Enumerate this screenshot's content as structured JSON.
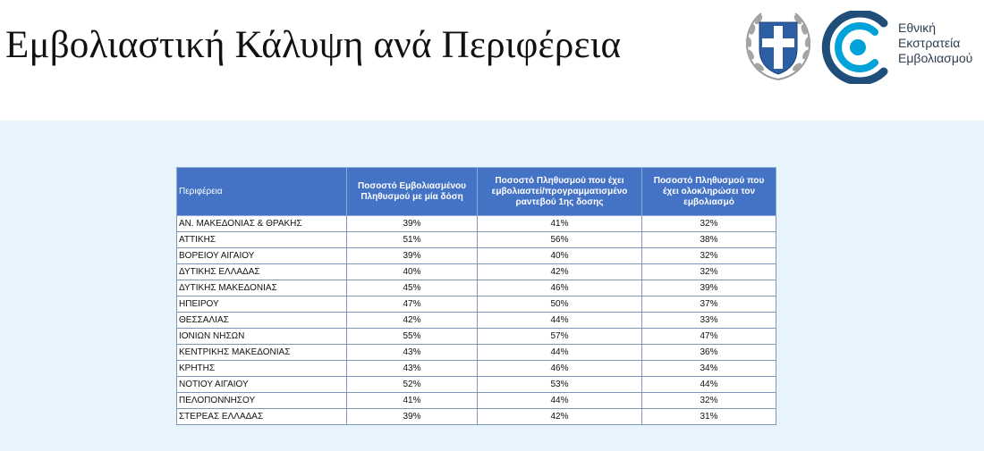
{
  "header": {
    "title": "Εμβολιαστική Κάλυψη ανά Περιφέρεια",
    "logo_text": [
      "Εθνική",
      "Εκστρατεία",
      "Εμβολιασμού"
    ],
    "colors": {
      "logo_dark": "#1f4e79",
      "logo_light": "#00a3d9",
      "seal_blue": "#2d5fa5"
    }
  },
  "table": {
    "headers": [
      "Περιφέρεια",
      "Ποσοστό Εμβολιασμένου Πληθυσμού με μία δόση",
      "Ποσοστό Πληθυσμού που έχει εμβολιαστεί/προγραμματισμένο ραντεβού 1ης δοσης",
      "Ποσοστό Πληθυσμού που έχει ολοκληρώσει τον εμβολιασμό"
    ],
    "rows": [
      [
        "ΑΝ. ΜΑΚΕΔΟΝΙΑΣ & ΘΡΑΚΗΣ",
        "39%",
        "41%",
        "32%"
      ],
      [
        "ΑΤΤΙΚΗΣ",
        "51%",
        "56%",
        "38%"
      ],
      [
        "ΒΟΡΕΙΟΥ ΑΙΓΑΙΟΥ",
        "39%",
        "40%",
        "32%"
      ],
      [
        "ΔΥΤΙΚΗΣ ΕΛΛΑΔΑΣ",
        "40%",
        "42%",
        "32%"
      ],
      [
        "ΔΥΤΙΚΗΣ ΜΑΚΕΔΟΝΙΑΣ",
        "45%",
        "46%",
        "39%"
      ],
      [
        "ΗΠΕΙΡΟΥ",
        "47%",
        "50%",
        "37%"
      ],
      [
        "ΘΕΣΣΑΛΙΑΣ",
        "42%",
        "44%",
        "33%"
      ],
      [
        "ΙΟΝΙΩΝ ΝΗΣΩΝ",
        "55%",
        "57%",
        "47%"
      ],
      [
        "ΚΕΝΤΡΙΚΗΣ ΜΑΚΕΔΟΝΙΑΣ",
        "43%",
        "44%",
        "36%"
      ],
      [
        "ΚΡΗΤΗΣ",
        "43%",
        "46%",
        "34%"
      ],
      [
        "ΝΟΤΙΟΥ ΑΙΓΑΙΟΥ",
        "52%",
        "53%",
        "44%"
      ],
      [
        "ΠΕΛΟΠΟΝΝΗΣΟΥ",
        "41%",
        "44%",
        "32%"
      ],
      [
        "ΣΤΕΡΕΑΣ ΕΛΛΑΔΑΣ",
        "39%",
        "42%",
        "31%"
      ]
    ],
    "colors": {
      "header_bg": "#4472c4",
      "band_bg": "#e8f4fb"
    }
  }
}
